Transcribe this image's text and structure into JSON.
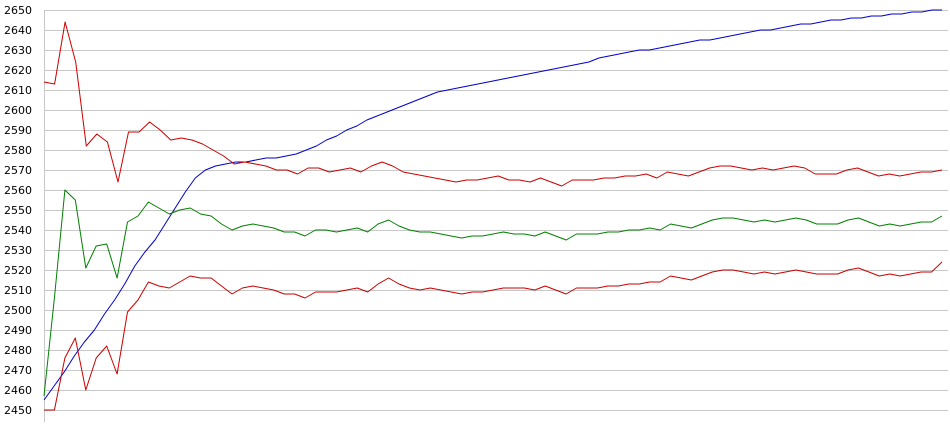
{
  "chart_data": {
    "type": "line",
    "title": "",
    "xlabel": "",
    "ylabel": "",
    "grid": true,
    "legend": "none",
    "ylim": [
      2450,
      2650
    ],
    "yticks": [
      2450,
      2460,
      2470,
      2480,
      2490,
      2500,
      2510,
      2520,
      2530,
      2540,
      2550,
      2560,
      2570,
      2580,
      2590,
      2600,
      2610,
      2620,
      2630,
      2640,
      2650
    ],
    "xlim": [
      0,
      89
    ],
    "series": [
      {
        "color": "#0000cc",
        "values": [
          2455,
          2462,
          2469,
          2477,
          2484,
          2490,
          2498,
          2505,
          2513,
          2522,
          2529,
          2535,
          2543,
          2551,
          2559,
          2566,
          2570,
          2572,
          2573,
          2574,
          2574,
          2575,
          2576,
          2576,
          2577,
          2578,
          2580,
          2582,
          2585,
          2587,
          2590,
          2592,
          2595,
          2597,
          2599,
          2601,
          2603,
          2605,
          2607,
          2609,
          2610,
          2611,
          2612,
          2613,
          2614,
          2615,
          2616,
          2617,
          2618,
          2619,
          2620,
          2621,
          2622,
          2623,
          2624,
          2626,
          2627,
          2628,
          2629,
          2630,
          2630,
          2631,
          2632,
          2633,
          2634,
          2635,
          2635,
          2636,
          2637,
          2638,
          2639,
          2640,
          2640,
          2641,
          2642,
          2643,
          2643,
          2644,
          2645,
          2645,
          2646,
          2646,
          2647,
          2647,
          2648,
          2648,
          2649,
          2649,
          2650,
          2650
        ]
      },
      {
        "color": "#cc0000",
        "values": [
          2614,
          2613,
          2644,
          2624,
          2582,
          2588,
          2584,
          2564,
          2589,
          2589,
          2594,
          2590,
          2585,
          2586,
          2585,
          2583,
          2580,
          2577,
          2573,
          2574,
          2573,
          2572,
          2570,
          2570,
          2568,
          2571,
          2571,
          2569,
          2570,
          2571,
          2569,
          2572,
          2574,
          2572,
          2569,
          2568,
          2567,
          2566,
          2565,
          2564,
          2565,
          2565,
          2566,
          2567,
          2565,
          2565,
          2564,
          2566,
          2564,
          2562,
          2565,
          2565,
          2565,
          2566,
          2566,
          2567,
          2567,
          2568,
          2566,
          2569,
          2568,
          2567,
          2569,
          2571,
          2572,
          2572,
          2571,
          2570,
          2571,
          2570,
          2571,
          2572,
          2571,
          2568,
          2568,
          2568,
          2570,
          2571,
          2569,
          2567,
          2568,
          2567,
          2568,
          2569,
          2569,
          2570
        ]
      },
      {
        "color": "#008000",
        "values": [
          2457,
          2506,
          2560,
          2555,
          2521,
          2532,
          2533,
          2516,
          2544,
          2547,
          2554,
          2551,
          2548,
          2550,
          2551,
          2548,
          2547,
          2543,
          2540,
          2542,
          2543,
          2542,
          2541,
          2539,
          2539,
          2537,
          2540,
          2540,
          2539,
          2540,
          2541,
          2539,
          2543,
          2545,
          2542,
          2540,
          2539,
          2539,
          2538,
          2537,
          2536,
          2537,
          2537,
          2538,
          2539,
          2538,
          2538,
          2537,
          2539,
          2537,
          2535,
          2538,
          2538,
          2538,
          2539,
          2539,
          2540,
          2540,
          2541,
          2540,
          2543,
          2542,
          2541,
          2543,
          2545,
          2546,
          2546,
          2545,
          2544,
          2545,
          2544,
          2545,
          2546,
          2545,
          2543,
          2543,
          2543,
          2545,
          2546,
          2544,
          2542,
          2543,
          2542,
          2543,
          2544,
          2544,
          2547
        ]
      },
      {
        "color": "#cc0000",
        "values": [
          2450,
          2450,
          2476,
          2486,
          2460,
          2476,
          2482,
          2468,
          2499,
          2505,
          2514,
          2512,
          2511,
          2514,
          2517,
          2516,
          2516,
          2512,
          2508,
          2511,
          2512,
          2511,
          2510,
          2508,
          2508,
          2506,
          2509,
          2509,
          2509,
          2510,
          2511,
          2509,
          2513,
          2516,
          2513,
          2511,
          2510,
          2511,
          2510,
          2509,
          2508,
          2509,
          2509,
          2510,
          2511,
          2511,
          2511,
          2510,
          2512,
          2510,
          2508,
          2511,
          2511,
          2511,
          2512,
          2512,
          2513,
          2513,
          2514,
          2514,
          2517,
          2516,
          2515,
          2517,
          2519,
          2520,
          2520,
          2519,
          2518,
          2519,
          2518,
          2519,
          2520,
          2519,
          2518,
          2518,
          2518,
          2520,
          2521,
          2519,
          2517,
          2518,
          2517,
          2518,
          2519,
          2519,
          2524
        ]
      }
    ]
  }
}
